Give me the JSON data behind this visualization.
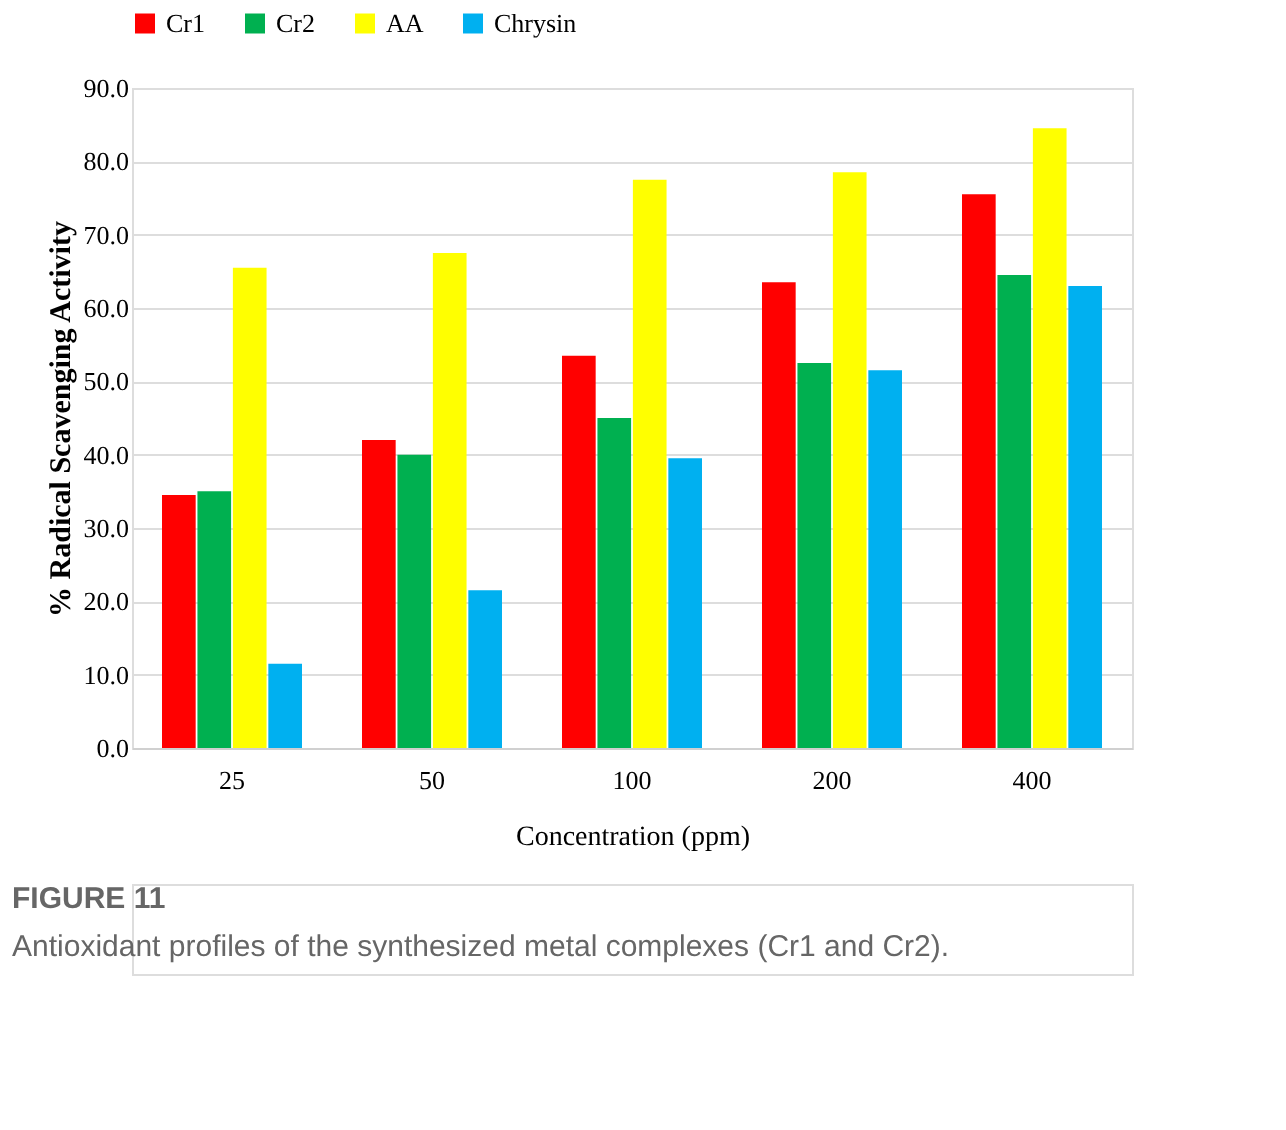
{
  "chart_data": {
    "type": "bar",
    "xlabel": "Concentration  (ppm)",
    "ylabel": "% Radical Scavenging Activity",
    "categories": [
      "25",
      "50",
      "100",
      "200",
      "400"
    ],
    "series": [
      {
        "name": "Cr1",
        "color": "#ff0000",
        "values": [
          34.5,
          42,
          53.5,
          63.5,
          75.5
        ]
      },
      {
        "name": "Cr2",
        "color": "#00b050",
        "values": [
          35,
          40,
          45,
          52.5,
          64.5
        ]
      },
      {
        "name": "AA",
        "color": "#ffff00",
        "values": [
          65.5,
          67.5,
          77.5,
          78.5,
          84.5
        ]
      },
      {
        "name": "Chrysin",
        "color": "#00b0f0",
        "values": [
          11.5,
          21.5,
          39.5,
          51.5,
          63
        ]
      }
    ],
    "ylim": [
      0,
      90
    ],
    "yticks": [
      {
        "value": 0,
        "label": "0.0"
      },
      {
        "value": 10,
        "label": "10.0"
      },
      {
        "value": 20,
        "label": "20.0"
      },
      {
        "value": 30,
        "label": "30.0"
      },
      {
        "value": 40,
        "label": "40.0"
      },
      {
        "value": 50,
        "label": "50.0"
      },
      {
        "value": 60,
        "label": "60.0"
      },
      {
        "value": 70,
        "label": "70.0"
      },
      {
        "value": 80,
        "label": "80.0"
      },
      {
        "value": 90,
        "label": "90.0"
      }
    ],
    "grid": "y",
    "legend": "top",
    "annotations": [
      "FIGURE 11",
      "Antioxidant profiles of the synthesized metal complexes (Cr1 and Cr2)."
    ]
  }
}
